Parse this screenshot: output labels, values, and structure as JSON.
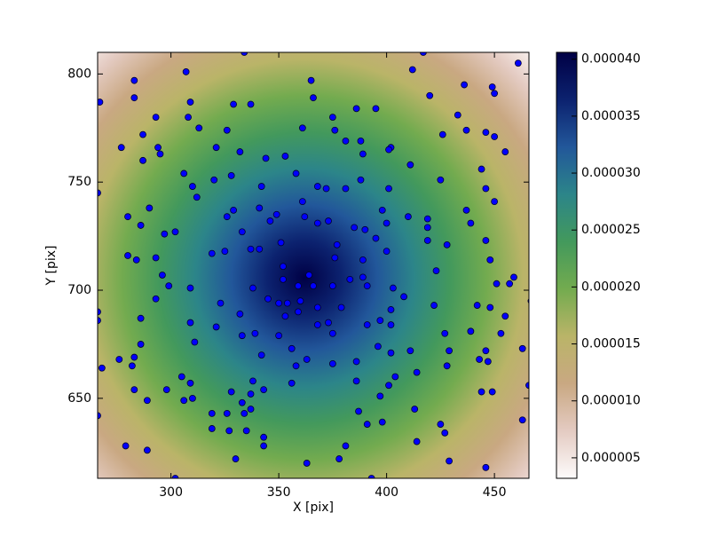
{
  "chart_data": {
    "type": "scatter",
    "x_label": "X [pix]",
    "y_label": "Y [pix]",
    "xlim": [
      266,
      466
    ],
    "ylim": [
      613,
      810
    ],
    "xticks": [
      300,
      350,
      400,
      450
    ],
    "yticks": [
      650,
      700,
      750,
      800
    ],
    "color": "#0000ff",
    "colormap": [
      "#fdfbfb",
      "#e4cbc2",
      "#c9a882",
      "#bab468",
      "#73ab4f",
      "#43995c",
      "#2c8589",
      "#22579a",
      "#0c226f",
      "#000045"
    ],
    "clim": [
      3.2e-06,
      4.06e-05
    ],
    "cticks": [
      {
        "value": 5e-06,
        "label": "0.000005"
      },
      {
        "value": 1e-05,
        "label": "0.000010"
      },
      {
        "value": 1.5e-05,
        "label": "0.000015"
      },
      {
        "value": 2e-05,
        "label": "0.000020"
      },
      {
        "value": 2.5e-05,
        "label": "0.000025"
      },
      {
        "value": 3e-05,
        "label": "0.000030"
      },
      {
        "value": 3.5e-05,
        "label": "0.000035"
      },
      {
        "value": 4e-05,
        "label": "0.000040"
      }
    ],
    "x": [
      334,
      417,
      461,
      267,
      283,
      307,
      365,
      412,
      449,
      450,
      283,
      309,
      329,
      337,
      366,
      386,
      395,
      436,
      420,
      293,
      308,
      375,
      433,
      313,
      326,
      361,
      376,
      437,
      446,
      450,
      426,
      287,
      277,
      294,
      295,
      321,
      332,
      381,
      388,
      389,
      402,
      401,
      455,
      287,
      344,
      353,
      411,
      306,
      328,
      320,
      358,
      388,
      444,
      425,
      266,
      310,
      312,
      342,
      368,
      372,
      381,
      401,
      446,
      450,
      280,
      290,
      326,
      329,
      341,
      349,
      361,
      362,
      368,
      373,
      346,
      398,
      400,
      410,
      419,
      437,
      439,
      286,
      302,
      297,
      333,
      377,
      385,
      390,
      395,
      419,
      419,
      428,
      446,
      351,
      319,
      280,
      284,
      325,
      337,
      341,
      293,
      376,
      400,
      389,
      352,
      352,
      423,
      448,
      459,
      451,
      457,
      296,
      299,
      309,
      338,
      359,
      366,
      375,
      383,
      389,
      391,
      403,
      408,
      293,
      345,
      350,
      354,
      360,
      323,
      467,
      266,
      266,
      332,
      353,
      359,
      368,
      379,
      402,
      422,
      442,
      448,
      455,
      286,
      309,
      321,
      368,
      373,
      375,
      391,
      397,
      402,
      427,
      439,
      339,
      333,
      350,
      453,
      311,
      286,
      356,
      396,
      402,
      411,
      429,
      446,
      463,
      283,
      276,
      342,
      363,
      386,
      282,
      358,
      375,
      428,
      443,
      447,
      268,
      404,
      414,
      305,
      309,
      338,
      386,
      356,
      283,
      466,
      298,
      328,
      337,
      343,
      444,
      449,
      401,
      397,
      333,
      337,
      306,
      310,
      289,
      266,
      319,
      326,
      334,
      387,
      413,
      319,
      327,
      335,
      343,
      343,
      391,
      398,
      425,
      427,
      463,
      414,
      381,
      279,
      289,
      330,
      363,
      378,
      429,
      446,
      302,
      393,
      364
    ],
    "values": [
      810,
      810,
      805,
      787,
      797,
      801,
      797,
      802,
      794,
      791,
      789,
      787,
      786,
      786,
      789,
      784,
      784,
      795,
      790,
      780,
      780,
      780,
      781,
      775,
      774,
      775,
      774,
      774,
      773,
      771,
      772,
      772,
      766,
      766,
      763,
      766,
      764,
      769,
      769,
      763,
      766,
      765,
      764,
      760,
      761,
      762,
      758,
      754,
      753,
      751,
      754,
      751,
      756,
      751,
      745,
      748,
      743,
      748,
      748,
      747,
      747,
      747,
      747,
      741,
      734,
      738,
      734,
      737,
      738,
      735,
      741,
      734,
      731,
      732,
      732,
      737,
      731,
      734,
      733,
      737,
      731,
      730,
      727,
      726,
      727,
      721,
      729,
      728,
      724,
      729,
      723,
      721,
      723,
      722,
      717,
      716,
      714,
      718,
      719,
      719,
      715,
      715,
      718,
      714,
      711,
      705,
      709,
      714,
      706,
      703,
      703,
      707,
      702,
      701,
      701,
      702,
      702,
      702,
      705,
      706,
      702,
      701,
      697,
      696,
      696,
      694,
      694,
      695,
      694,
      695,
      690,
      686,
      689,
      688,
      690,
      692,
      692,
      691,
      693,
      693,
      692,
      688,
      687,
      685,
      683,
      684,
      685,
      680,
      684,
      686,
      684,
      680,
      681,
      680,
      679,
      679,
      680,
      676,
      675,
      673,
      674,
      671,
      672,
      672,
      672,
      673,
      669,
      668,
      670,
      668,
      667,
      665,
      665,
      666,
      665,
      668,
      667,
      664,
      660,
      662,
      660,
      657,
      658,
      658,
      657,
      654,
      656,
      654,
      653,
      652,
      654,
      653,
      653,
      656,
      651,
      648,
      645,
      649,
      650,
      649,
      642,
      643,
      643,
      643,
      644,
      645,
      636,
      635,
      635,
      632,
      628,
      638,
      639,
      638,
      634,
      640,
      630,
      628,
      628,
      626,
      622,
      620,
      622,
      621,
      618,
      613,
      613,
      707
    ]
  }
}
